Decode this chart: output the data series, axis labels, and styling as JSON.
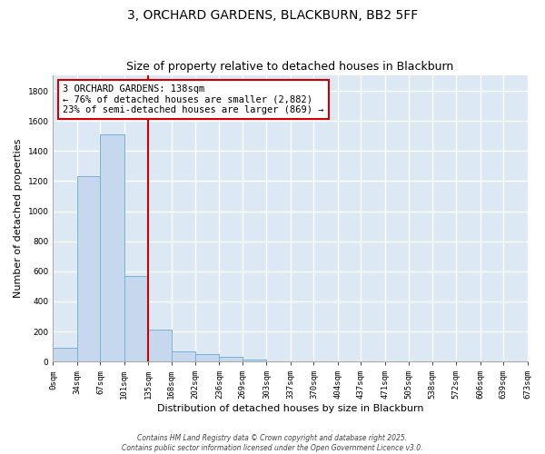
{
  "title": "3, ORCHARD GARDENS, BLACKBURN, BB2 5FF",
  "subtitle": "Size of property relative to detached houses in Blackburn",
  "xlabel": "Distribution of detached houses by size in Blackburn",
  "ylabel": "Number of detached properties",
  "bar_color": "#c5d8ed",
  "bar_edge_color": "#7bafd4",
  "bg_color": "#dce9f5",
  "grid_color": "#ffffff",
  "bin_edges": [
    0,
    34,
    67,
    101,
    135,
    168,
    202,
    236,
    269,
    303,
    337,
    370,
    404,
    437,
    471,
    505,
    538,
    572,
    606,
    639,
    673
  ],
  "bin_labels": [
    "0sqm",
    "34sqm",
    "67sqm",
    "101sqm",
    "135sqm",
    "168sqm",
    "202sqm",
    "236sqm",
    "269sqm",
    "303sqm",
    "337sqm",
    "370sqm",
    "404sqm",
    "437sqm",
    "471sqm",
    "505sqm",
    "538sqm",
    "572sqm",
    "606sqm",
    "639sqm",
    "673sqm"
  ],
  "counts": [
    90,
    1230,
    1510,
    570,
    210,
    70,
    47,
    30,
    15,
    0,
    0,
    0,
    0,
    0,
    0,
    0,
    0,
    0,
    0,
    0
  ],
  "property_line_x": 135,
  "property_line_color": "#cc0000",
  "ylim": [
    0,
    1900
  ],
  "yticks": [
    0,
    200,
    400,
    600,
    800,
    1000,
    1200,
    1400,
    1600,
    1800
  ],
  "annotation_line1": "3 ORCHARD GARDENS: 138sqm",
  "annotation_line2": "← 76% of detached houses are smaller (2,882)",
  "annotation_line3": "23% of semi-detached houses are larger (869) →",
  "footer1": "Contains HM Land Registry data © Crown copyright and database right 2025.",
  "footer2": "Contains public sector information licensed under the Open Government Licence v3.0.",
  "fig_width": 6.0,
  "fig_height": 5.0,
  "title_fontsize": 10,
  "subtitle_fontsize": 9,
  "axis_label_fontsize": 8,
  "tick_fontsize": 6.5,
  "annotation_fontsize": 7.5,
  "footer_fontsize": 5.5
}
